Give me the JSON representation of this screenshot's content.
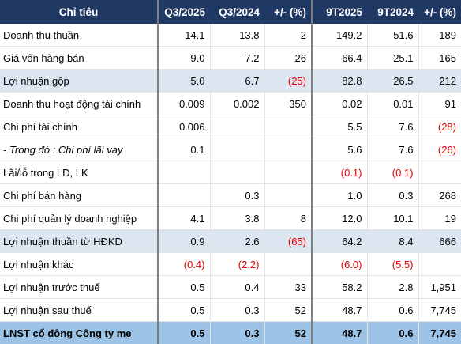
{
  "table": {
    "header": [
      "Chỉ tiêu",
      "Q3/2025",
      "Q3/2024",
      "+/- (%)",
      "9T2025",
      "9T2024",
      "+/- (%)"
    ],
    "rows": [
      [
        "Doanh thu thuần",
        "14.1",
        "13.8",
        "2",
        "149.2",
        "51.6",
        "189"
      ],
      [
        "Giá vốn hàng bán",
        "9.0",
        "7.2",
        "26",
        "66.4",
        "25.1",
        "165"
      ],
      [
        "Lợi nhuận gộp",
        "5.0",
        "6.7",
        "(25)",
        "82.8",
        "26.5",
        "212"
      ],
      [
        "Doanh thu hoạt động tài chính",
        "0.009",
        "0.002",
        "350",
        "0.02",
        "0.01",
        "91"
      ],
      [
        "Chi phí tài chính",
        "0.006",
        null,
        null,
        "5.5",
        "7.6",
        "(28)"
      ],
      [
        "- Trong đó : Chi phí lãi vay",
        "0.1",
        null,
        null,
        "5.6",
        "7.6",
        "(26)"
      ],
      [
        "Lãi/lỗ trong LD, LK",
        null,
        null,
        null,
        "(0.1)",
        "(0.1)",
        null
      ],
      [
        "Chi phí bán hàng",
        null,
        "0.3",
        null,
        "1.0",
        "0.3",
        "268"
      ],
      [
        "Chi phí quản lý doanh nghiệp",
        "4.1",
        "3.8",
        "8",
        "12.0",
        "10.1",
        "19"
      ],
      [
        "Lợi nhuận thuần từ HĐKD",
        "0.9",
        "2.6",
        "(65)",
        "64.2",
        "8.4",
        "666"
      ],
      [
        "Lợi nhuận khác",
        "(0.4)",
        "(2.2)",
        null,
        "(6.0)",
        "(5.5)",
        null
      ],
      [
        "Lợi nhuận trước thuế",
        "0.5",
        "0.4",
        "33",
        "58.2",
        "2.8",
        "1,951"
      ],
      [
        "Lợi nhuận sau thuế",
        "0.5",
        "0.3",
        "52",
        "48.7",
        "0.6",
        "7,745"
      ],
      [
        "LNST cổ đông Công ty mẹ",
        "0.5",
        "0.3",
        "52",
        "48.7",
        "0.6",
        "7,745"
      ]
    ]
  }
}
